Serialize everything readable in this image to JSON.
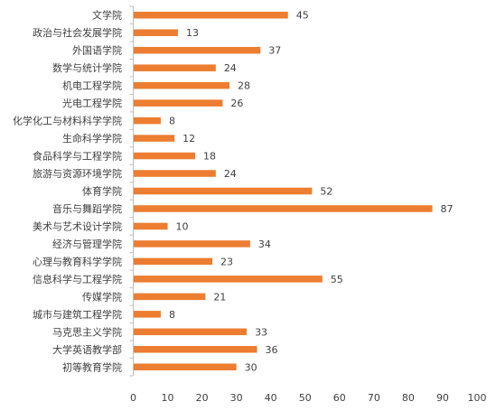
{
  "chart_data": {
    "type": "bar",
    "orientation": "horizontal",
    "categories": [
      "文学院",
      "政治与社会发展学院",
      "外国语学院",
      "数学与统计学院",
      "机电工程学院",
      "光电工程学院",
      "化学化工与材料科学学院",
      "生命科学学院",
      "食品科学与工程学院",
      "旅游与资源环境学院",
      "体育学院",
      "音乐与舞蹈学院",
      "美术与艺术设计学院",
      "经济与管理学院",
      "心理与教育科学学院",
      "信息科学与工程学院",
      "传媒学院",
      "城市与建筑工程学院",
      "马克思主义学院",
      "大学英语教学部",
      "初等教育学院"
    ],
    "values": [
      45,
      13,
      37,
      24,
      28,
      26,
      8,
      12,
      18,
      24,
      52,
      87,
      10,
      34,
      23,
      55,
      21,
      8,
      33,
      36,
      30
    ],
    "xlim": [
      0,
      100
    ],
    "x_ticks": [
      0,
      10,
      20,
      30,
      40,
      50,
      60,
      70,
      80,
      90,
      100
    ],
    "title": "",
    "xlabel": "",
    "ylabel": "",
    "bar_color": "#ED7D31",
    "data_labels": true,
    "grid": false,
    "legend": "none"
  }
}
